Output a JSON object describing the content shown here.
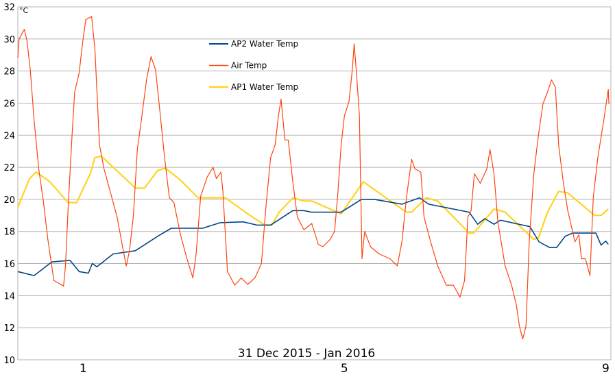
{
  "chart_data": {
    "type": "line",
    "title": "",
    "xlabel": "31 Dec 2015 - Jan 2016",
    "ylabel": "°C",
    "xlim": [
      0,
      9.08
    ],
    "ylim": [
      10,
      32
    ],
    "x_ticks": [
      {
        "value": 1,
        "label": "1"
      },
      {
        "value": 5,
        "label": "5"
      },
      {
        "value": 9,
        "label": "9"
      }
    ],
    "y_ticks": [
      10,
      12,
      14,
      16,
      18,
      20,
      22,
      24,
      26,
      28,
      30,
      32
    ],
    "grid": true,
    "legend_position": "top-center",
    "series": [
      {
        "name": "AP2 Water Temp",
        "color": "#004586",
        "points": [
          [
            0,
            15.5
          ],
          [
            0.25,
            15.25
          ],
          [
            0.52,
            16.1
          ],
          [
            0.8,
            16.2
          ],
          [
            0.94,
            15.5
          ],
          [
            1.08,
            15.4
          ],
          [
            1.14,
            16.0
          ],
          [
            1.21,
            15.8
          ],
          [
            1.46,
            16.6
          ],
          [
            1.8,
            16.8
          ],
          [
            2.14,
            17.7
          ],
          [
            2.35,
            18.2
          ],
          [
            2.83,
            18.2
          ],
          [
            3.1,
            18.55
          ],
          [
            3.45,
            18.6
          ],
          [
            3.66,
            18.4
          ],
          [
            3.87,
            18.4
          ],
          [
            4.21,
            19.3
          ],
          [
            4.38,
            19.3
          ],
          [
            4.5,
            19.2
          ],
          [
            4.95,
            19.2
          ],
          [
            5.26,
            20.0
          ],
          [
            5.46,
            20.0
          ],
          [
            5.88,
            19.7
          ],
          [
            6.15,
            20.1
          ],
          [
            6.29,
            19.7
          ],
          [
            6.91,
            19.2
          ],
          [
            7.04,
            18.45
          ],
          [
            7.15,
            18.8
          ],
          [
            7.29,
            18.45
          ],
          [
            7.39,
            18.7
          ],
          [
            7.84,
            18.3
          ],
          [
            7.98,
            17.35
          ],
          [
            8.14,
            17.0
          ],
          [
            8.25,
            17.0
          ],
          [
            8.38,
            17.7
          ],
          [
            8.49,
            17.9
          ],
          [
            8.85,
            17.9
          ],
          [
            8.93,
            17.15
          ],
          [
            9.0,
            17.4
          ],
          [
            9.04,
            17.2
          ]
        ]
      },
      {
        "name": "Air Temp",
        "color": "#ff420e",
        "points": [
          [
            0,
            28.8
          ],
          [
            0.02,
            30
          ],
          [
            0.1,
            30.6
          ],
          [
            0.14,
            29.9
          ],
          [
            0.19,
            28.1
          ],
          [
            0.25,
            24.9
          ],
          [
            0.32,
            21.9
          ],
          [
            0.39,
            19.9
          ],
          [
            0.46,
            17.5
          ],
          [
            0.52,
            15.85
          ],
          [
            0.55,
            14.95
          ],
          [
            0.7,
            14.6
          ],
          [
            0.73,
            15.85
          ],
          [
            0.77,
            19.5
          ],
          [
            0.83,
            24
          ],
          [
            0.87,
            26.7
          ],
          [
            0.94,
            27.9
          ],
          [
            0.99,
            29.7
          ],
          [
            1.04,
            31.2
          ],
          [
            1.13,
            31.4
          ],
          [
            1.18,
            29.4
          ],
          [
            1.25,
            23.4
          ],
          [
            1.32,
            21.9
          ],
          [
            1.42,
            20.4
          ],
          [
            1.52,
            18.9
          ],
          [
            1.61,
            16.9
          ],
          [
            1.66,
            15.85
          ],
          [
            1.71,
            16.8
          ],
          [
            1.77,
            19.0
          ],
          [
            1.83,
            23.1
          ],
          [
            1.9,
            25.2
          ],
          [
            1.97,
            27.45
          ],
          [
            2.04,
            28.9
          ],
          [
            2.11,
            28.05
          ],
          [
            2.18,
            25.3
          ],
          [
            2.25,
            22.5
          ],
          [
            2.32,
            20.1
          ],
          [
            2.39,
            19.8
          ],
          [
            2.49,
            17.8
          ],
          [
            2.59,
            16.3
          ],
          [
            2.68,
            15.1
          ],
          [
            2.73,
            16.6
          ],
          [
            2.8,
            20.2
          ],
          [
            2.9,
            21.4
          ],
          [
            2.99,
            22.0
          ],
          [
            3.04,
            21.3
          ],
          [
            3.11,
            21.7
          ],
          [
            3.14,
            20.5
          ],
          [
            3.21,
            15.5
          ],
          [
            3.32,
            14.65
          ],
          [
            3.42,
            15.1
          ],
          [
            3.52,
            14.7
          ],
          [
            3.63,
            15.1
          ],
          [
            3.73,
            16.0
          ],
          [
            3.8,
            19.6
          ],
          [
            3.87,
            22.6
          ],
          [
            3.94,
            23.4
          ],
          [
            3.99,
            25.2
          ],
          [
            4.03,
            26.25
          ],
          [
            4.09,
            23.7
          ],
          [
            4.14,
            23.7
          ],
          [
            4.21,
            21.1
          ],
          [
            4.28,
            18.9
          ],
          [
            4.38,
            18.1
          ],
          [
            4.5,
            18.5
          ],
          [
            4.6,
            17.2
          ],
          [
            4.67,
            17.05
          ],
          [
            4.78,
            17.5
          ],
          [
            4.85,
            18
          ],
          [
            4.9,
            20.4
          ],
          [
            4.95,
            23.4
          ],
          [
            5.0,
            25.2
          ],
          [
            5.07,
            26.1
          ],
          [
            5.12,
            28.05
          ],
          [
            5.15,
            29.7
          ],
          [
            5.19,
            27.6
          ],
          [
            5.23,
            25.2
          ],
          [
            5.27,
            16.3
          ],
          [
            5.31,
            18
          ],
          [
            5.4,
            17.05
          ],
          [
            5.53,
            16.6
          ],
          [
            5.7,
            16.3
          ],
          [
            5.81,
            15.85
          ],
          [
            5.88,
            17.35
          ],
          [
            5.95,
            20.1
          ],
          [
            6.03,
            22.5
          ],
          [
            6.08,
            21.9
          ],
          [
            6.17,
            21.7
          ],
          [
            6.22,
            18.9
          ],
          [
            6.32,
            17.35
          ],
          [
            6.43,
            15.85
          ],
          [
            6.56,
            14.65
          ],
          [
            6.67,
            14.65
          ],
          [
            6.77,
            13.9
          ],
          [
            6.84,
            14.95
          ],
          [
            6.89,
            18.9
          ],
          [
            6.94,
            19.3
          ],
          [
            6.99,
            21.6
          ],
          [
            7.08,
            21.0
          ],
          [
            7.18,
            21.9
          ],
          [
            7.23,
            23.1
          ],
          [
            7.29,
            21.6
          ],
          [
            7.35,
            18.6
          ],
          [
            7.46,
            15.85
          ],
          [
            7.56,
            14.65
          ],
          [
            7.63,
            13.45
          ],
          [
            7.68,
            12.1
          ],
          [
            7.73,
            11.3
          ],
          [
            7.78,
            12.1
          ],
          [
            7.83,
            17.35
          ],
          [
            7.9,
            21.6
          ],
          [
            7.97,
            24
          ],
          [
            8.04,
            25.95
          ],
          [
            8.11,
            26.7
          ],
          [
            8.17,
            27.45
          ],
          [
            8.23,
            27.0
          ],
          [
            8.28,
            23.4
          ],
          [
            8.35,
            21.1
          ],
          [
            8.42,
            19.3
          ],
          [
            8.48,
            18.25
          ],
          [
            8.53,
            17.35
          ],
          [
            8.59,
            17.8
          ],
          [
            8.63,
            16.3
          ],
          [
            8.69,
            16.3
          ],
          [
            8.76,
            15.25
          ],
          [
            8.81,
            20.1
          ],
          [
            8.88,
            22.6
          ],
          [
            8.97,
            24.9
          ],
          [
            9.04,
            26.85
          ],
          [
            9.05,
            25.95
          ]
        ]
      },
      {
        "name": "AP1 Water Temp",
        "color": "#ffd320",
        "points": [
          [
            0,
            19.5
          ],
          [
            0.18,
            21.3
          ],
          [
            0.28,
            21.7
          ],
          [
            0.49,
            21.1
          ],
          [
            0.77,
            19.8
          ],
          [
            0.9,
            19.8
          ],
          [
            1.11,
            21.6
          ],
          [
            1.18,
            22.6
          ],
          [
            1.28,
            22.7
          ],
          [
            1.46,
            22.0
          ],
          [
            1.8,
            20.7
          ],
          [
            1.94,
            20.7
          ],
          [
            2.14,
            21.8
          ],
          [
            2.26,
            21.95
          ],
          [
            2.49,
            21.2
          ],
          [
            2.76,
            20.1
          ],
          [
            3.18,
            20.1
          ],
          [
            3.52,
            19.1
          ],
          [
            3.78,
            18.4
          ],
          [
            3.89,
            18.4
          ],
          [
            4.0,
            19.2
          ],
          [
            4.21,
            20.1
          ],
          [
            4.38,
            19.9
          ],
          [
            4.5,
            19.9
          ],
          [
            4.95,
            19.1
          ],
          [
            5.29,
            21.1
          ],
          [
            5.53,
            20.4
          ],
          [
            5.95,
            19.2
          ],
          [
            6.03,
            19.2
          ],
          [
            6.25,
            20.1
          ],
          [
            6.43,
            19.9
          ],
          [
            6.91,
            17.9
          ],
          [
            6.98,
            17.9
          ],
          [
            7.29,
            19.4
          ],
          [
            7.46,
            19.2
          ],
          [
            7.9,
            17.5
          ],
          [
            7.97,
            17.6
          ],
          [
            8.11,
            19.2
          ],
          [
            8.28,
            20.5
          ],
          [
            8.42,
            20.4
          ],
          [
            8.83,
            19.0
          ],
          [
            8.93,
            19.0
          ],
          [
            9.04,
            19.4
          ]
        ]
      }
    ]
  }
}
